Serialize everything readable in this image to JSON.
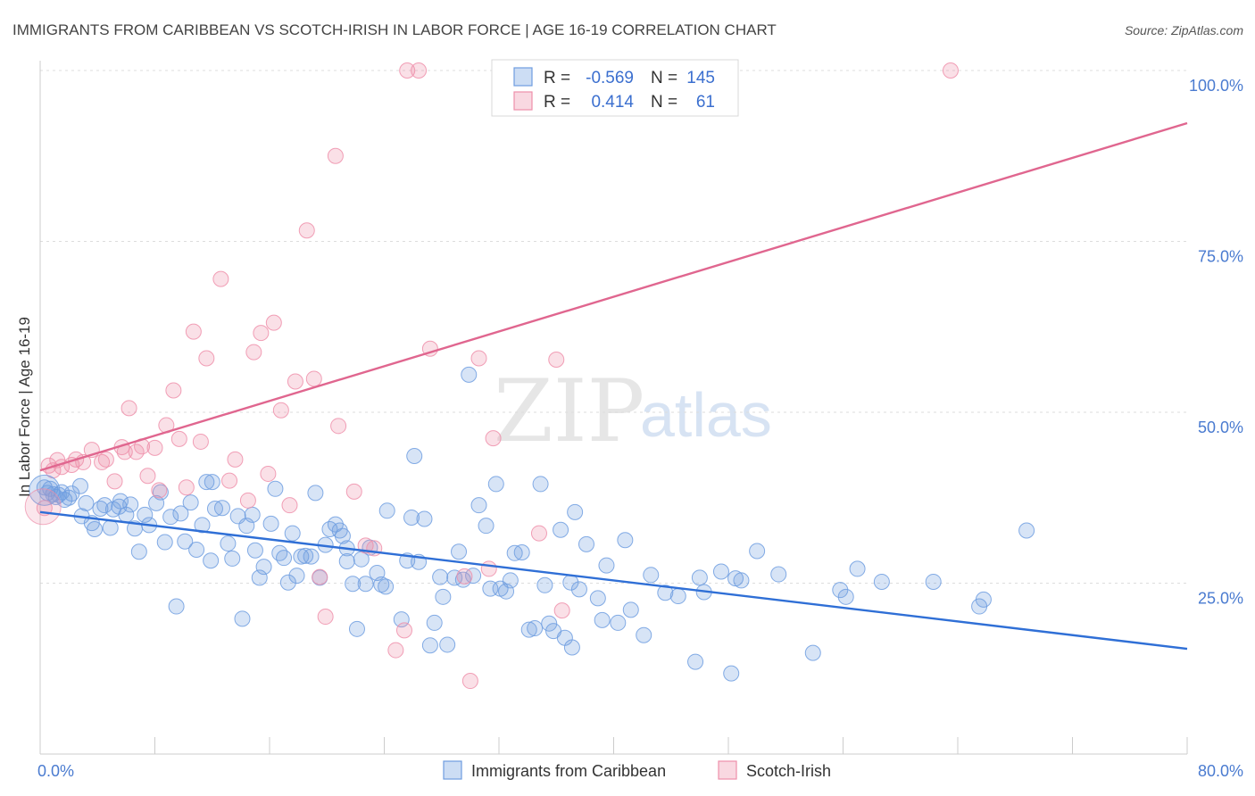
{
  "title": "IMMIGRANTS FROM CARIBBEAN VS SCOTCH-IRISH IN LABOR FORCE | AGE 16-19 CORRELATION CHART",
  "source": "Source: ZipAtlas.com",
  "watermark": {
    "zip": "ZIP",
    "atlas": "atlas"
  },
  "legend": {
    "r_label": "R =",
    "n_label": "N =",
    "rows": [
      {
        "r": "-0.569",
        "n": "145",
        "color": "#6e9de0"
      },
      {
        "r": "0.414",
        "n": "61",
        "color": "#ee8faa"
      }
    ]
  },
  "bottom_legend": [
    {
      "label": "Immigrants from Caribbean",
      "color": "#6e9de0"
    },
    {
      "label": "Scotch-Irish",
      "color": "#ee8faa"
    }
  ],
  "chart_data": {
    "type": "scatter",
    "ylabel": "In Labor Force | Age 16-19",
    "xlim": [
      0,
      80
    ],
    "ylim": [
      0,
      102
    ],
    "y_ticks": [
      {
        "v": 25,
        "label": "25.0%"
      },
      {
        "v": 50,
        "label": "50.0%"
      },
      {
        "v": 75,
        "label": "75.0%"
      },
      {
        "v": 100,
        "label": "100.0%"
      }
    ],
    "x_tick_labels": [
      {
        "v": 0,
        "label": "0.0%"
      },
      {
        "v": 80,
        "label": "80.0%"
      }
    ],
    "grid": true,
    "series": [
      {
        "name": "Immigrants from Caribbean",
        "color": "#6e9de0",
        "trend": {
          "x0": 0,
          "y0": 35.4,
          "x1": 80,
          "y1": 15.4
        },
        "points": [
          [
            0.3,
            39.0
          ],
          [
            0.5,
            38.2
          ],
          [
            0.7,
            38.8
          ],
          [
            0.9,
            38.0
          ],
          [
            1.1,
            37.6
          ],
          [
            1.3,
            37.9
          ],
          [
            1.5,
            38.3
          ],
          [
            1.7,
            37.2
          ],
          [
            2.0,
            37.5
          ],
          [
            2.2,
            38.1
          ],
          [
            2.8,
            39.2
          ],
          [
            2.9,
            34.8
          ],
          [
            3.2,
            36.7
          ],
          [
            3.6,
            33.8
          ],
          [
            3.8,
            32.9
          ],
          [
            4.2,
            35.9
          ],
          [
            4.5,
            36.4
          ],
          [
            4.9,
            33.1
          ],
          [
            5.1,
            35.8
          ],
          [
            5.5,
            36.2
          ],
          [
            5.6,
            37.0
          ],
          [
            6.0,
            35.0
          ],
          [
            6.3,
            36.5
          ],
          [
            6.6,
            33.0
          ],
          [
            6.9,
            29.6
          ],
          [
            7.3,
            35.0
          ],
          [
            7.6,
            33.5
          ],
          [
            8.1,
            36.7
          ],
          [
            8.4,
            38.3
          ],
          [
            8.7,
            31.0
          ],
          [
            9.1,
            34.7
          ],
          [
            9.5,
            21.6
          ],
          [
            9.8,
            35.2
          ],
          [
            10.1,
            31.1
          ],
          [
            10.5,
            36.8
          ],
          [
            10.9,
            29.9
          ],
          [
            11.3,
            33.5
          ],
          [
            11.6,
            39.8
          ],
          [
            11.9,
            28.3
          ],
          [
            12.2,
            35.9
          ],
          [
            12.7,
            36.0
          ],
          [
            13.1,
            30.8
          ],
          [
            13.4,
            28.6
          ],
          [
            13.8,
            34.8
          ],
          [
            14.1,
            19.8
          ],
          [
            14.4,
            33.4
          ],
          [
            14.8,
            35.0
          ],
          [
            15.0,
            29.8
          ],
          [
            15.3,
            25.8
          ],
          [
            15.6,
            27.4
          ],
          [
            16.1,
            33.7
          ],
          [
            16.4,
            38.8
          ],
          [
            16.7,
            29.4
          ],
          [
            17.0,
            28.7
          ],
          [
            17.3,
            25.1
          ],
          [
            17.6,
            32.3
          ],
          [
            17.9,
            26.1
          ],
          [
            18.2,
            28.9
          ],
          [
            18.5,
            29.0
          ],
          [
            18.9,
            28.9
          ],
          [
            19.2,
            38.2
          ],
          [
            19.5,
            25.8
          ],
          [
            19.9,
            30.6
          ],
          [
            20.2,
            32.9
          ],
          [
            20.6,
            33.6
          ],
          [
            20.9,
            32.7
          ],
          [
            21.1,
            31.9
          ],
          [
            21.4,
            30.1
          ],
          [
            21.8,
            24.9
          ],
          [
            22.1,
            18.3
          ],
          [
            22.4,
            28.5
          ],
          [
            22.7,
            24.9
          ],
          [
            23.0,
            30.2
          ],
          [
            23.5,
            26.5
          ],
          [
            23.8,
            24.8
          ],
          [
            24.1,
            24.5
          ],
          [
            24.2,
            35.6
          ],
          [
            25.2,
            19.7
          ],
          [
            25.6,
            28.3
          ],
          [
            25.9,
            34.6
          ],
          [
            26.1,
            43.6
          ],
          [
            26.4,
            28.1
          ],
          [
            26.8,
            34.4
          ],
          [
            27.2,
            15.9
          ],
          [
            27.5,
            19.2
          ],
          [
            27.9,
            25.9
          ],
          [
            28.1,
            23.0
          ],
          [
            28.4,
            16.0
          ],
          [
            28.9,
            25.8
          ],
          [
            29.2,
            29.6
          ],
          [
            29.5,
            25.5
          ],
          [
            29.9,
            55.5
          ],
          [
            30.2,
            26.1
          ],
          [
            30.6,
            36.4
          ],
          [
            31.1,
            33.4
          ],
          [
            31.4,
            24.2
          ],
          [
            31.8,
            39.5
          ],
          [
            32.1,
            24.2
          ],
          [
            32.5,
            23.8
          ],
          [
            32.8,
            25.4
          ],
          [
            33.1,
            29.4
          ],
          [
            33.6,
            29.5
          ],
          [
            34.1,
            18.2
          ],
          [
            34.5,
            18.4
          ],
          [
            34.9,
            39.5
          ],
          [
            35.2,
            24.7
          ],
          [
            35.5,
            19.1
          ],
          [
            35.8,
            18.0
          ],
          [
            36.3,
            32.8
          ],
          [
            36.6,
            17.0
          ],
          [
            37.0,
            25.1
          ],
          [
            37.3,
            35.4
          ],
          [
            37.6,
            24.1
          ],
          [
            38.1,
            30.7
          ],
          [
            38.9,
            22.8
          ],
          [
            39.2,
            19.6
          ],
          [
            39.5,
            27.6
          ],
          [
            40.3,
            19.2
          ],
          [
            40.8,
            31.3
          ],
          [
            41.2,
            21.1
          ],
          [
            42.1,
            17.4
          ],
          [
            42.6,
            26.2
          ],
          [
            43.6,
            23.6
          ],
          [
            44.5,
            23.1
          ],
          [
            45.7,
            13.5
          ],
          [
            46.0,
            25.8
          ],
          [
            46.3,
            23.7
          ],
          [
            47.5,
            26.7
          ],
          [
            48.2,
            11.8
          ],
          [
            48.5,
            25.7
          ],
          [
            48.9,
            25.4
          ],
          [
            50.0,
            29.7
          ],
          [
            51.5,
            26.3
          ],
          [
            53.9,
            14.8
          ],
          [
            55.8,
            24.0
          ],
          [
            56.2,
            23.0
          ],
          [
            57.0,
            27.1
          ],
          [
            58.7,
            25.2
          ],
          [
            62.3,
            25.2
          ],
          [
            65.5,
            21.6
          ],
          [
            65.8,
            22.6
          ],
          [
            68.8,
            32.7
          ],
          [
            37.1,
            15.6
          ],
          [
            12.0,
            39.8
          ],
          [
            21.4,
            28.2
          ]
        ]
      },
      {
        "name": "Scotch-Irish",
        "color": "#ee8faa",
        "trend": {
          "x0": 0,
          "y0": 41.5,
          "x1": 80,
          "y1": 92.3
        },
        "points": [
          [
            0.3,
            36.0
          ],
          [
            0.6,
            42.2
          ],
          [
            0.9,
            41.5
          ],
          [
            1.2,
            43.0
          ],
          [
            1.5,
            42.0
          ],
          [
            2.2,
            42.3
          ],
          [
            2.5,
            43.1
          ],
          [
            3.0,
            42.7
          ],
          [
            3.6,
            44.5
          ],
          [
            4.3,
            42.7
          ],
          [
            4.6,
            43.1
          ],
          [
            5.2,
            39.9
          ],
          [
            5.7,
            44.9
          ],
          [
            5.9,
            44.2
          ],
          [
            6.2,
            50.6
          ],
          [
            6.7,
            44.2
          ],
          [
            7.1,
            45.0
          ],
          [
            7.5,
            40.7
          ],
          [
            8.0,
            44.8
          ],
          [
            8.3,
            38.6
          ],
          [
            8.8,
            48.1
          ],
          [
            9.3,
            53.2
          ],
          [
            9.7,
            46.1
          ],
          [
            10.2,
            39.0
          ],
          [
            10.7,
            61.8
          ],
          [
            11.2,
            45.7
          ],
          [
            11.6,
            57.9
          ],
          [
            12.6,
            69.5
          ],
          [
            13.2,
            40.0
          ],
          [
            13.6,
            43.1
          ],
          [
            14.5,
            37.1
          ],
          [
            14.9,
            58.8
          ],
          [
            15.4,
            61.6
          ],
          [
            15.9,
            41.0
          ],
          [
            16.3,
            63.1
          ],
          [
            16.8,
            50.3
          ],
          [
            17.4,
            36.4
          ],
          [
            17.8,
            54.5
          ],
          [
            18.6,
            76.6
          ],
          [
            19.1,
            54.9
          ],
          [
            19.5,
            25.9
          ],
          [
            19.9,
            20.1
          ],
          [
            20.6,
            87.5
          ],
          [
            20.8,
            48.0
          ],
          [
            21.9,
            38.4
          ],
          [
            22.7,
            30.5
          ],
          [
            23.3,
            30.1
          ],
          [
            24.8,
            15.2
          ],
          [
            25.4,
            18.1
          ],
          [
            25.6,
            100.0
          ],
          [
            26.4,
            100.0
          ],
          [
            27.2,
            59.3
          ],
          [
            29.6,
            26.0
          ],
          [
            30.0,
            10.7
          ],
          [
            30.6,
            57.9
          ],
          [
            31.3,
            27.1
          ],
          [
            31.6,
            46.2
          ],
          [
            34.8,
            32.3
          ],
          [
            36.0,
            57.7
          ],
          [
            36.4,
            21.0
          ],
          [
            63.5,
            100.0
          ]
        ]
      }
    ]
  }
}
